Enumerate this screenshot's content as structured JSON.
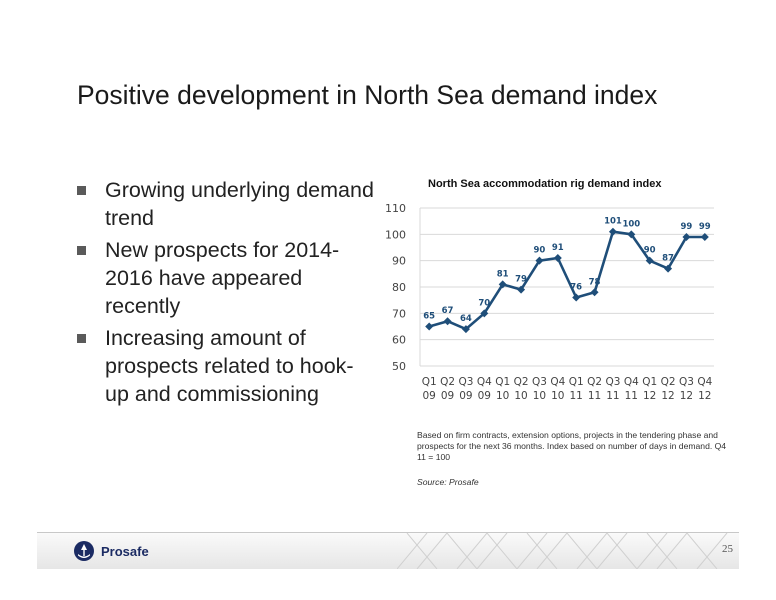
{
  "slide": {
    "title": "Positive development in North Sea demand index",
    "bullets": [
      "Growing underlying demand trend",
      "New prospects for 2014-2016 have appeared recently",
      "Increasing amount of prospects related to hook-up and commissioning"
    ],
    "note": "Based on firm contracts, extension options, projects in the tendering phase and prospects for the next 36 months. Index based on number of days in demand. Q4 11 = 100",
    "source": "Source: Prosafe",
    "logo_text": "Prosafe",
    "page_number": "25"
  },
  "colors": {
    "line": "#1f4e79",
    "bullet": "#5a5a5a",
    "logo": "#1b2b63"
  },
  "chart_data": {
    "type": "line",
    "title": "North Sea accommodation rig demand index",
    "categories": [
      [
        "Q1",
        "09"
      ],
      [
        "Q2",
        "09"
      ],
      [
        "Q3",
        "09"
      ],
      [
        "Q4",
        "09"
      ],
      [
        "Q1",
        "10"
      ],
      [
        "Q2",
        "10"
      ],
      [
        "Q3",
        "10"
      ],
      [
        "Q4",
        "10"
      ],
      [
        "Q1",
        "11"
      ],
      [
        "Q2",
        "11"
      ],
      [
        "Q3",
        "11"
      ],
      [
        "Q4",
        "11"
      ],
      [
        "Q1",
        "12"
      ],
      [
        "Q2",
        "12"
      ],
      [
        "Q3",
        "12"
      ],
      [
        "Q4",
        "12"
      ]
    ],
    "values": [
      65,
      67,
      64,
      70,
      81,
      79,
      90,
      91,
      76,
      78,
      101,
      100,
      90,
      87,
      99,
      99
    ],
    "ylim": [
      50,
      110
    ],
    "yticks": [
      50,
      60,
      70,
      80,
      90,
      100,
      110
    ],
    "grid": true,
    "legend": "none",
    "marker": "diamond"
  }
}
